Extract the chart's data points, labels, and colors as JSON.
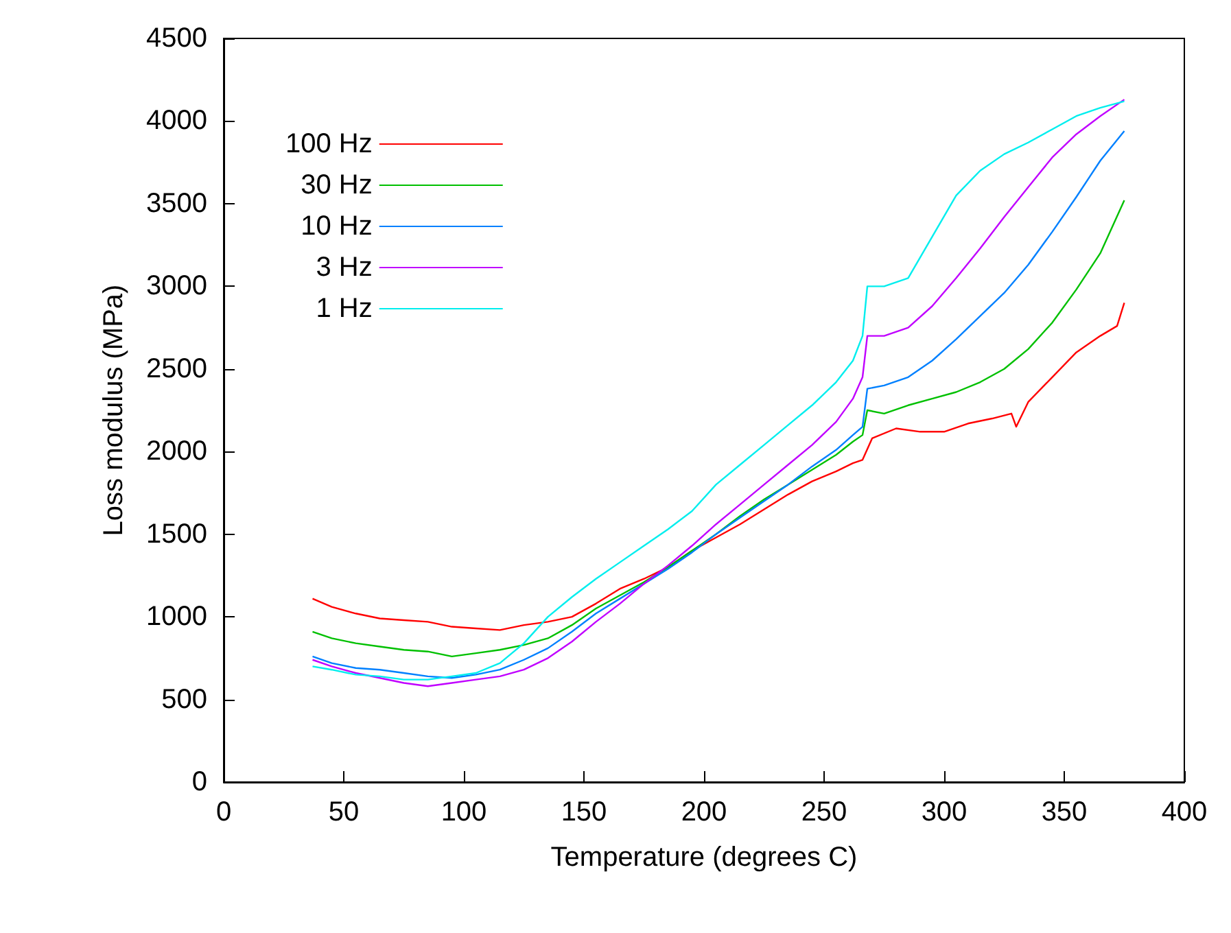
{
  "chart_data": {
    "type": "line",
    "xlabel": "Temperature (degrees C)",
    "ylabel": "Loss modulus (MPa)",
    "xlim": [
      0,
      400
    ],
    "xticks": [
      0,
      50,
      100,
      150,
      200,
      250,
      300,
      350,
      400
    ],
    "ylim": [
      0,
      4500
    ],
    "yticks": [
      0,
      500,
      1000,
      1500,
      2000,
      2500,
      3000,
      3500,
      4000,
      4500
    ],
    "grid": false,
    "legend": "top left",
    "marker": "none",
    "line_style": "solid",
    "x": [
      37,
      45,
      55,
      65,
      75,
      85,
      95,
      105,
      115,
      125,
      135,
      145,
      155,
      165,
      175,
      185,
      195,
      205,
      215,
      225,
      235,
      245,
      255,
      262,
      266,
      268,
      275,
      285,
      295,
      305,
      315,
      325,
      335,
      345,
      355,
      365,
      375
    ],
    "series": [
      {
        "name": "100 Hz",
        "color": "#ff0000",
        "x": [
          37,
          45,
          55,
          65,
          75,
          85,
          95,
          105,
          115,
          125,
          135,
          145,
          155,
          165,
          175,
          185,
          195,
          205,
          215,
          225,
          235,
          245,
          255,
          262,
          266,
          270,
          280,
          290,
          300,
          310,
          320,
          328,
          330,
          335,
          345,
          355,
          365,
          372,
          375
        ],
        "values": [
          1110,
          1060,
          1020,
          990,
          980,
          970,
          940,
          930,
          920,
          950,
          970,
          1000,
          1080,
          1170,
          1230,
          1300,
          1400,
          1480,
          1560,
          1650,
          1740,
          1820,
          1880,
          1930,
          1950,
          2080,
          2140,
          2120,
          2120,
          2170,
          2200,
          2230,
          2150,
          2300,
          2450,
          2600,
          2700,
          2760,
          2900
        ]
      },
      {
        "name": "30 Hz",
        "color": "#00c000",
        "values": [
          910,
          870,
          840,
          820,
          800,
          790,
          760,
          780,
          800,
          830,
          870,
          950,
          1050,
          1130,
          1210,
          1300,
          1400,
          1500,
          1610,
          1710,
          1800,
          1890,
          1980,
          2060,
          2100,
          2250,
          2230,
          2280,
          2320,
          2360,
          2420,
          2500,
          2620,
          2780,
          2980,
          3200,
          3520
        ]
      },
      {
        "name": "10 Hz",
        "color": "#0080ff",
        "values": [
          760,
          720,
          690,
          680,
          660,
          640,
          630,
          650,
          680,
          740,
          810,
          910,
          1020,
          1110,
          1200,
          1290,
          1390,
          1500,
          1600,
          1700,
          1800,
          1910,
          2010,
          2100,
          2150,
          2380,
          2400,
          2450,
          2550,
          2680,
          2820,
          2960,
          3130,
          3330,
          3540,
          3760,
          3940
        ]
      },
      {
        "name": "3 Hz",
        "color": "#c000ff",
        "values": [
          740,
          700,
          660,
          630,
          600,
          580,
          600,
          620,
          640,
          680,
          750,
          850,
          970,
          1080,
          1200,
          1310,
          1430,
          1560,
          1680,
          1800,
          1920,
          2040,
          2180,
          2320,
          2450,
          2700,
          2700,
          2750,
          2880,
          3050,
          3230,
          3420,
          3600,
          3780,
          3920,
          4030,
          4130
        ]
      },
      {
        "name": "1 Hz",
        "color": "#00eeee",
        "values": [
          700,
          680,
          650,
          640,
          620,
          620,
          640,
          660,
          720,
          840,
          1000,
          1120,
          1230,
          1330,
          1430,
          1530,
          1640,
          1800,
          1920,
          2040,
          2160,
          2280,
          2420,
          2550,
          2700,
          3000,
          3000,
          3050,
          3300,
          3550,
          3700,
          3800,
          3870,
          3950,
          4030,
          4080,
          4120
        ]
      }
    ]
  }
}
